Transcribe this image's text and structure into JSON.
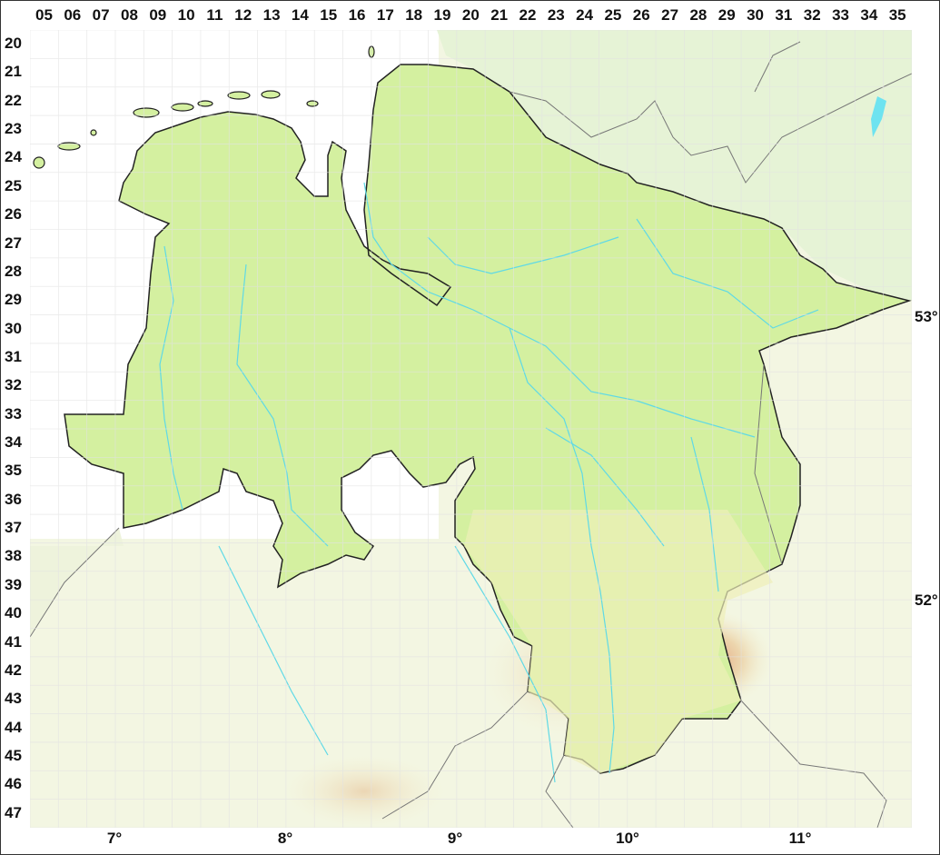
{
  "grid": {
    "columns": [
      "05",
      "06",
      "07",
      "08",
      "09",
      "10",
      "11",
      "12",
      "13",
      "14",
      "15",
      "16",
      "17",
      "18",
      "19",
      "20",
      "21",
      "22",
      "23",
      "24",
      "25",
      "26",
      "27",
      "28",
      "29",
      "30",
      "31",
      "32",
      "33",
      "34",
      "35"
    ],
    "rows": [
      "20",
      "21",
      "22",
      "23",
      "24",
      "25",
      "26",
      "27",
      "28",
      "29",
      "30",
      "31",
      "32",
      "33",
      "34",
      "35",
      "36",
      "37",
      "38",
      "39",
      "40",
      "41",
      "42",
      "43",
      "44",
      "45",
      "46",
      "47"
    ]
  },
  "longitude_labels": [
    "7°",
    "8°",
    "9°",
    "10°",
    "11°"
  ],
  "latitude_labels": [
    "53°",
    "52°"
  ],
  "colors": {
    "region_fill": "#d4f0a0",
    "background_terrain": "#f3f6e2",
    "rivers": "#5fd9e6",
    "borders": "#222222",
    "grid": "#e2e2e2",
    "highlands": "#e0a080"
  }
}
